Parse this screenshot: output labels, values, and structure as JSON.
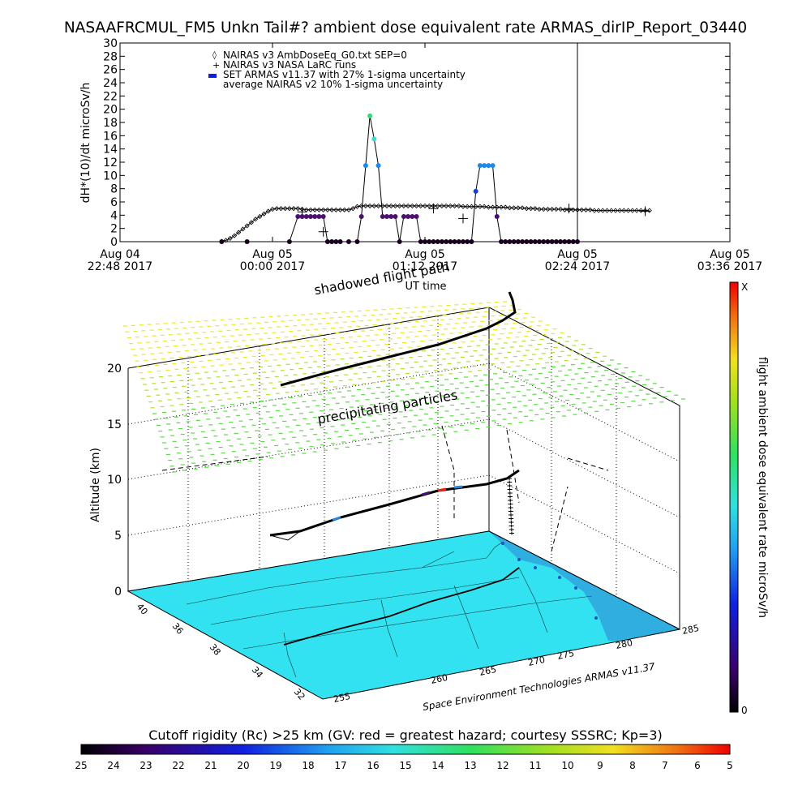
{
  "header": {
    "title": "NASAAFRCMUL_FM5 Unkn Tail#? ambient dose equivalent rate ARMAS_dirIP_Report_03440"
  },
  "top_plot": {
    "ylabel": "dH*(10)/dt microSv/h",
    "xlabel": "UT time",
    "legend": [
      {
        "marker": "diamond",
        "label": "NAIRAS v3 AmbDoseEq_G0.txt SEP=0"
      },
      {
        "marker": "cross",
        "label": "NAIRAS v3 NASA LaRC runs"
      },
      {
        "marker": "blue-bar",
        "label": "SET ARMAS v11.37 with 27% 1-sigma uncertainty"
      },
      {
        "marker": "none",
        "label": "average NAIRAS v2 10% 1-sigma uncertainty"
      }
    ],
    "x_ticks": [
      {
        "top": "Aug 04",
        "bottom": "22:48 2017"
      },
      {
        "top": "Aug 05",
        "bottom": "00:00 2017"
      },
      {
        "top": "Aug 05",
        "bottom": "01:12 2017"
      },
      {
        "top": "Aug 05",
        "bottom": "02:24 2017"
      },
      {
        "top": "Aug 05",
        "bottom": "03:36 2017"
      }
    ]
  },
  "chart_data": {
    "type": "scatter",
    "title": "NASAAFRCMUL_FM5 Unkn Tail#? ambient dose equivalent rate ARMAS_dirIP_Report_03440",
    "xlabel": "UT time",
    "ylabel": "dH*(10)/dt microSv/h",
    "x_tick_labels": [
      "Aug 04 22:48 2017",
      "Aug 05 00:00 2017",
      "Aug 05 01:12 2017",
      "Aug 05 02:24 2017",
      "Aug 05 03:36 2017"
    ],
    "xlim_minutes_after_2248": [
      0,
      288
    ],
    "ylim": [
      0,
      30
    ],
    "y_ticks": [
      0,
      2,
      4,
      6,
      8,
      10,
      12,
      14,
      16,
      18,
      20,
      22,
      24,
      26,
      28,
      30
    ],
    "grid": false,
    "legend_position": "top-left inside",
    "vertical_marker_minute": 216,
    "series": [
      {
        "name": "NAIRAS v3 AmbDoseEq_G0.txt SEP=0",
        "marker": "diamond",
        "color": "#000000",
        "minute": [
          48,
          50,
          52,
          54,
          56,
          58,
          60,
          62,
          64,
          66,
          68,
          70,
          72,
          74,
          76,
          78,
          80,
          82,
          84,
          86,
          88,
          90,
          92,
          94,
          96,
          98,
          100,
          102,
          104,
          106,
          108,
          110,
          112,
          114,
          116,
          118,
          120,
          122,
          124,
          126,
          128,
          130,
          132,
          134,
          136,
          138,
          140,
          142,
          144,
          146,
          148,
          150,
          152,
          154,
          156,
          158,
          160,
          162,
          164,
          166,
          168,
          170,
          172,
          174,
          176,
          178,
          180,
          182,
          184,
          186,
          188,
          190,
          192,
          194,
          196,
          198,
          200,
          202,
          204,
          206,
          208,
          210,
          212,
          214,
          216,
          218,
          220,
          222,
          224,
          226,
          228,
          230,
          232,
          234,
          236,
          238,
          240,
          242,
          244,
          246,
          248,
          250
        ],
        "dose": [
          0.05,
          0.2,
          0.5,
          0.9,
          1.4,
          1.9,
          2.4,
          2.9,
          3.4,
          3.8,
          4.2,
          4.6,
          4.9,
          5.0,
          5.0,
          5.0,
          5.0,
          5.0,
          5.0,
          4.9,
          4.8,
          4.8,
          4.8,
          4.8,
          4.8,
          4.8,
          4.8,
          4.8,
          4.8,
          4.8,
          4.8,
          5.0,
          5.3,
          5.4,
          5.4,
          5.4,
          5.4,
          5.4,
          5.4,
          5.4,
          5.4,
          5.4,
          5.4,
          5.4,
          5.4,
          5.4,
          5.4,
          5.4,
          5.4,
          5.4,
          5.4,
          5.4,
          5.4,
          5.4,
          5.4,
          5.4,
          5.4,
          5.3,
          5.3,
          5.3,
          5.3,
          5.3,
          5.3,
          5.2,
          5.2,
          5.2,
          5.2,
          5.2,
          5.1,
          5.1,
          5.1,
          5.1,
          5.0,
          5.0,
          5.0,
          4.9,
          4.9,
          4.9,
          4.9,
          4.9,
          4.9,
          4.8,
          4.8,
          4.8,
          4.8,
          4.8,
          4.8,
          4.8,
          4.7,
          4.7,
          4.7,
          4.7,
          4.7,
          4.7,
          4.7,
          4.7,
          4.7,
          4.7,
          4.7,
          4.7,
          4.7,
          4.7
        ]
      },
      {
        "name": "NAIRAS v3 NASA LaRC runs",
        "marker": "cross",
        "color": "#000000",
        "minute": [
          86,
          96,
          148,
          162,
          212,
          248
        ],
        "dose": [
          4.5,
          1.5,
          5.0,
          3.5,
          5.0,
          4.6
        ]
      },
      {
        "name": "SET ARMAS v11.37 with 27% 1-sigma uncertainty",
        "marker": "filled-circle",
        "color_scale": "dose rate",
        "minute": [
          48,
          60,
          80,
          84,
          86,
          88,
          90,
          92,
          94,
          96,
          98,
          100,
          102,
          104,
          108,
          112,
          114,
          116,
          118,
          120,
          122,
          124,
          126,
          128,
          130,
          132,
          134,
          136,
          138,
          140,
          142,
          144,
          146,
          148,
          150,
          152,
          154,
          156,
          158,
          160,
          162,
          164,
          166,
          168,
          170,
          172,
          174,
          176,
          178,
          180,
          182,
          184,
          186,
          188,
          190,
          192,
          194,
          196,
          198,
          200,
          202,
          204,
          206,
          208,
          210,
          212,
          214,
          216
        ],
        "dose": [
          0,
          0,
          0,
          3.8,
          3.8,
          3.8,
          3.8,
          3.8,
          3.8,
          3.8,
          0,
          0,
          0,
          0,
          0,
          0,
          3.8,
          11.5,
          19,
          15.5,
          11.5,
          3.8,
          3.8,
          3.8,
          3.8,
          0,
          3.8,
          3.8,
          3.8,
          3.8,
          0,
          0,
          0,
          0,
          0,
          0,
          0,
          0,
          0,
          0,
          0,
          0,
          0,
          7.6,
          11.5,
          11.5,
          11.5,
          11.5,
          3.8,
          0,
          0,
          0,
          0,
          0,
          0,
          0,
          0,
          0,
          0,
          0,
          0,
          0,
          0,
          0,
          0,
          0,
          0,
          0
        ],
        "color": [
          "#180020",
          "#180020",
          "#180020",
          "#4a1070",
          "#4a1070",
          "#4a1070",
          "#4a1070",
          "#4a1070",
          "#4a1070",
          "#4a1070",
          "#180020",
          "#180020",
          "#180020",
          "#180020",
          "#180020",
          "#180020",
          "#4a1070",
          "#1c8ae6",
          "#36d878",
          "#33e0d0",
          "#1c8ae6",
          "#4a1070",
          "#4a1070",
          "#4a1070",
          "#4a1070",
          "#180020",
          "#4a1070",
          "#4a1070",
          "#4a1070",
          "#4a1070",
          "#180020",
          "#180020",
          "#180020",
          "#180020",
          "#180020",
          "#180020",
          "#180020",
          "#180020",
          "#180020",
          "#180020",
          "#180020",
          "#180020",
          "#180020",
          "#1a3fd0",
          "#1c8ae6",
          "#1c8ae6",
          "#1c8ae6",
          "#1c8ae6",
          "#4a1070",
          "#180020",
          "#180020",
          "#180020",
          "#180020",
          "#180020",
          "#180020",
          "#180020",
          "#180020",
          "#180020",
          "#180020",
          "#180020",
          "#180020",
          "#180020",
          "#180020",
          "#180020",
          "#180020",
          "#180020",
          "#180020",
          "#180020"
        ]
      }
    ]
  },
  "bottom_plot": {
    "annotations": [
      "shadowed flight path",
      "precipitating particles"
    ],
    "z_label": "Altitude (km)",
    "z_ticks": [
      "0",
      "5",
      "10",
      "15",
      "20"
    ],
    "lat_ticks": [
      "40",
      "36",
      "38",
      "34",
      "32"
    ],
    "lon_ticks": [
      "255",
      "260",
      "265",
      "270",
      "275",
      "280",
      "285"
    ],
    "credit": "Space Environment Technologies ARMAS v11.37",
    "colorbar_label": "flight ambient dose equivalent rate microSv/h",
    "colorbar_top": "X",
    "colorbar_bottom": "0"
  },
  "bottom_colorbar": {
    "label": "Cutoff rigidity (Rc) >25 km (GV: red = greatest hazard; courtesy SSSRC; Kp=3)",
    "ticks": [
      "25",
      "24",
      "23",
      "22",
      "21",
      "20",
      "19",
      "18",
      "17",
      "16",
      "15",
      "14",
      "13",
      "12",
      "11",
      "10",
      "9",
      "8",
      "7",
      "6",
      "5"
    ]
  },
  "colors": {
    "map_fill": "#33e2f0",
    "grid_yellow": "#e9e92a",
    "grid_green": "#5ed84a",
    "ocean_edge": "#2a4ec0"
  }
}
